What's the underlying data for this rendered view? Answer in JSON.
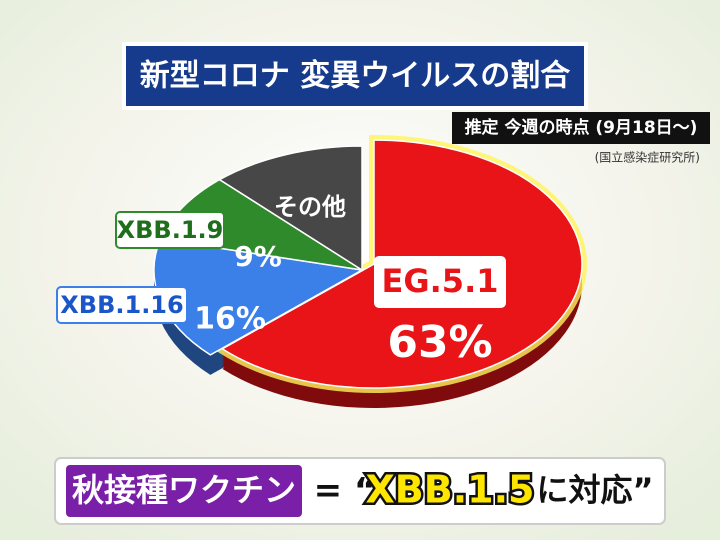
{
  "chart_data": {
    "type": "pie",
    "title": "新型コロナ 変異ウイルスの割合",
    "subtitle": "推定 今週の時点 (9月18日〜)",
    "source": "(国立感染症研究所)",
    "categories": [
      "EG.5.1",
      "XBB.1.16",
      "XBB.1.9",
      "その他"
    ],
    "values": [
      63,
      16,
      9,
      12
    ],
    "value_labels": [
      "63%",
      "16%",
      "9%",
      null
    ],
    "colors": [
      "#e81418",
      "#3b7fe8",
      "#2f8a2c",
      "#474747"
    ],
    "banner": {
      "tag": "秋接種ワクチン",
      "lead": "= “",
      "strain": "XBB.1.5",
      "tail": "に対応”"
    }
  }
}
